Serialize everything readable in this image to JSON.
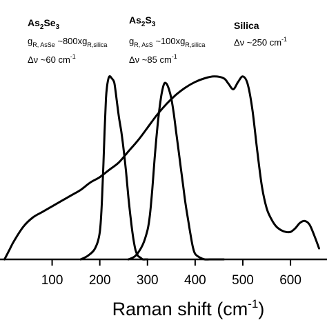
{
  "chart_data": {
    "type": "line",
    "title": "",
    "xlabel": "Raman shift (cm",
    "xlabel_sup": "-1",
    "xlabel_close": ")",
    "ylabel": "",
    "xlim": [
      -5,
      665
    ],
    "ylim": [
      0,
      1.12
    ],
    "x_ticks": [
      100,
      200,
      300,
      400,
      500,
      600
    ],
    "x_tick_labels": [
      "100",
      "200",
      "300",
      "400",
      "500",
      "600"
    ],
    "grid": false,
    "legend": "none",
    "line_color": "#000000",
    "series": [
      {
        "x": [
          160,
          175,
          190,
          200,
          205,
          210,
          213,
          216,
          220,
          225,
          230,
          233,
          236,
          240,
          245,
          250,
          255,
          260,
          265,
          270,
          275,
          280,
          285,
          290,
          295,
          300
        ],
        "y": [
          0.0,
          0.02,
          0.06,
          0.15,
          0.35,
          0.7,
          0.88,
          0.96,
          1.0,
          0.99,
          0.97,
          0.92,
          0.86,
          0.78,
          0.7,
          0.6,
          0.48,
          0.34,
          0.22,
          0.12,
          0.05,
          0.02,
          0.01,
          0.0,
          0.0,
          0.0
        ]
      },
      {
        "x": [
          260,
          275,
          290,
          300,
          305,
          310,
          315,
          320,
          325,
          330,
          335,
          340,
          345,
          350,
          355,
          360,
          365,
          370,
          375,
          380,
          385,
          390,
          395,
          400,
          410,
          420,
          430,
          440,
          450,
          460
        ],
        "y": [
          0.0,
          0.02,
          0.08,
          0.16,
          0.24,
          0.38,
          0.55,
          0.7,
          0.82,
          0.91,
          0.96,
          0.96,
          0.93,
          0.88,
          0.8,
          0.7,
          0.6,
          0.5,
          0.4,
          0.3,
          0.22,
          0.14,
          0.07,
          0.03,
          0.01,
          0.0,
          0.0,
          0.0,
          0.0,
          0.0
        ]
      },
      {
        "x": [
          0,
          10,
          20,
          40,
          60,
          80,
          100,
          120,
          140,
          160,
          180,
          200,
          220,
          240,
          260,
          280,
          300,
          320,
          340,
          360,
          380,
          400,
          420,
          440,
          460,
          470,
          480,
          490,
          500,
          510,
          520,
          530,
          540,
          550,
          560,
          570,
          580,
          590,
          600,
          610,
          620,
          630,
          640,
          650,
          660
        ],
        "y": [
          0.0,
          0.05,
          0.1,
          0.18,
          0.23,
          0.26,
          0.29,
          0.32,
          0.35,
          0.38,
          0.42,
          0.45,
          0.49,
          0.53,
          0.59,
          0.65,
          0.72,
          0.79,
          0.85,
          0.9,
          0.94,
          0.97,
          0.99,
          1.0,
          0.99,
          0.96,
          0.93,
          0.97,
          1.0,
          0.96,
          0.82,
          0.6,
          0.4,
          0.28,
          0.22,
          0.18,
          0.16,
          0.15,
          0.15,
          0.17,
          0.2,
          0.21,
          0.19,
          0.13,
          0.06
        ]
      }
    ],
    "annotations": [
      {
        "name": "As2Se3",
        "name_parts": [
          "As",
          "2",
          "Se",
          "3"
        ],
        "gain_parts": [
          "g",
          "R, AsSe",
          " ~800xg",
          "R,silica"
        ],
        "width_parts": [
          "Δν ~60 cm",
          "-1"
        ]
      },
      {
        "name": "As2S3",
        "name_parts": [
          "As",
          "2",
          "S",
          "3"
        ],
        "gain_parts": [
          "g",
          "R, AsS",
          " ~100xg",
          "R,silica"
        ],
        "width_parts": [
          "Δν ~85 cm",
          "-1"
        ]
      },
      {
        "name": "Silica",
        "name_parts": [
          "Silica"
        ],
        "width_parts": [
          "Δν ~250 cm",
          "-1"
        ]
      }
    ]
  }
}
